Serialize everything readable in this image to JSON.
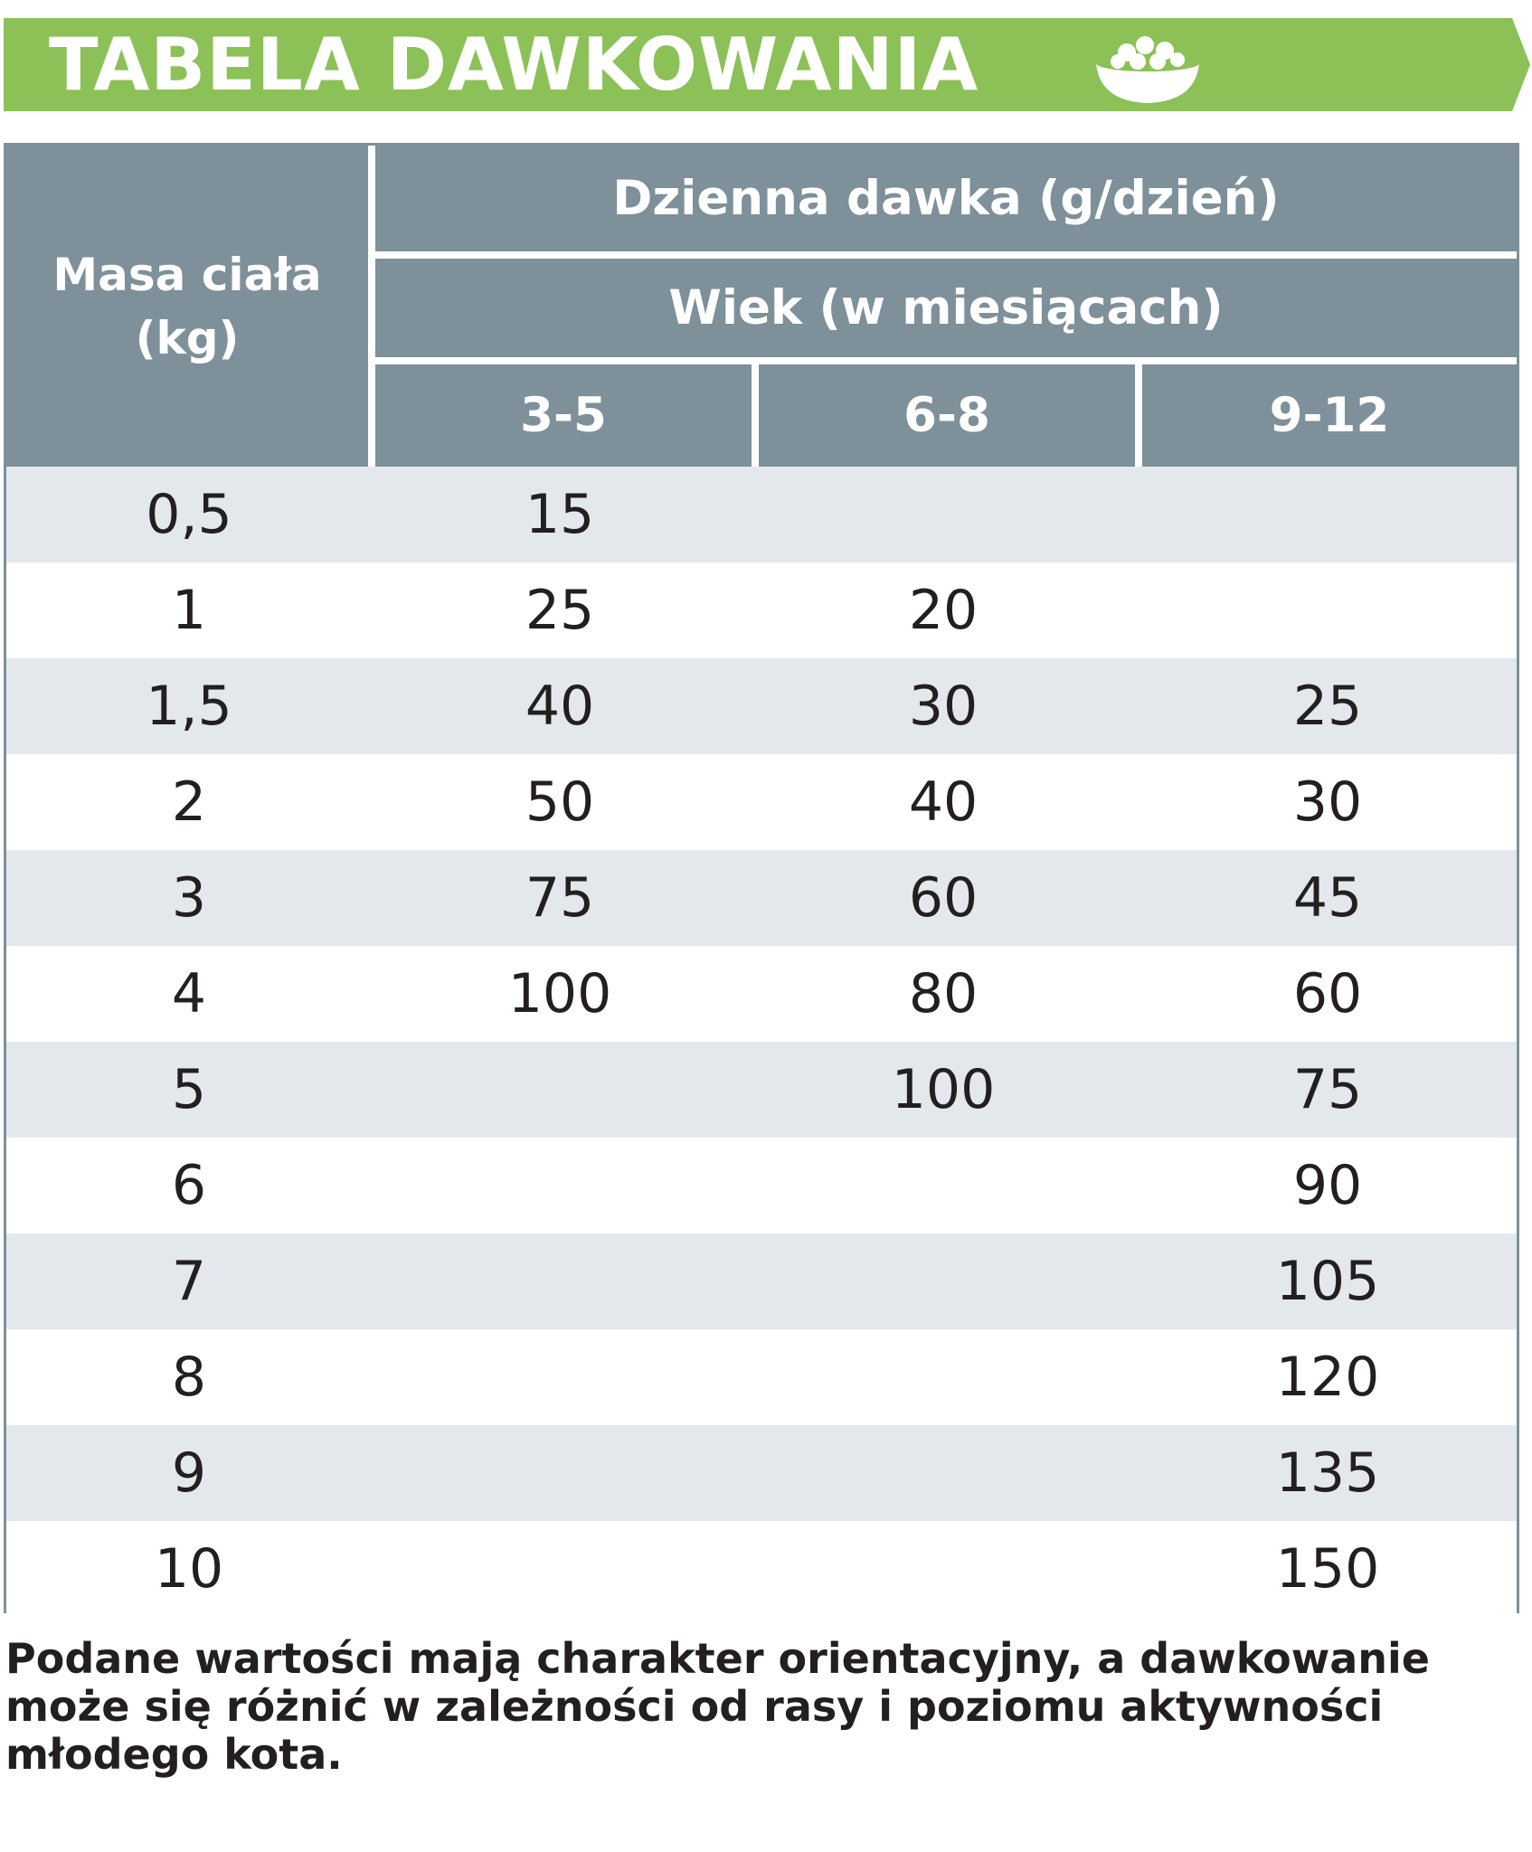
{
  "banner": {
    "title": "TABELA DAWKOWANIA",
    "icon": "food-bowl-icon",
    "color": "#8cc157"
  },
  "table": {
    "header_color": "#7e909a",
    "mass_header": [
      "Masa ciała",
      "(kg)"
    ],
    "daily_header": "Dzienna dawka (g/dzień)",
    "age_header": "Wiek (w miesiącach)",
    "age_columns": [
      "3-5",
      "6-8",
      "9-12"
    ],
    "rows": [
      [
        "0,5",
        "15",
        "",
        ""
      ],
      [
        "1",
        "25",
        "20",
        ""
      ],
      [
        "1,5",
        "40",
        "30",
        "25"
      ],
      [
        "2",
        "50",
        "40",
        "30"
      ],
      [
        "3",
        "75",
        "60",
        "45"
      ],
      [
        "4",
        "100",
        "80",
        "60"
      ],
      [
        "5",
        "",
        "100",
        "75"
      ],
      [
        "6",
        "",
        "",
        "90"
      ],
      [
        "7",
        "",
        "",
        "105"
      ],
      [
        "8",
        "",
        "",
        "120"
      ],
      [
        "9",
        "",
        "",
        "135"
      ],
      [
        "10",
        "",
        "",
        "150"
      ]
    ]
  },
  "note": "Podane wartości mają charakter orientacyjny, a dawkowanie może się różnić w zależności od rasy i poziomu aktywności młodego kota."
}
